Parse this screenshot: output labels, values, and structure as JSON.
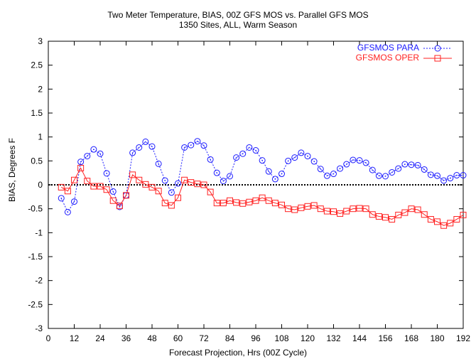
{
  "colors": {
    "para": "#1a1aff",
    "oper": "#ff2020",
    "zero": "#000000"
  },
  "chart_data": {
    "type": "line",
    "title": "Two Meter Temperature, BIAS, 00Z GFS MOS vs. Parallel GFS MOS",
    "subtitle": "1350 Sites, ALL, Warm Season",
    "xlabel": "Forecast Projection, Hrs (00Z Cycle)",
    "ylabel": "BIAS, Degrees F",
    "xlim": [
      0,
      192
    ],
    "ylim": [
      -3,
      3
    ],
    "xticks": [
      0,
      12,
      24,
      36,
      48,
      60,
      72,
      84,
      96,
      108,
      120,
      132,
      144,
      156,
      168,
      180,
      192
    ],
    "yticks": [
      -3,
      -2.5,
      -2,
      -1.5,
      -1,
      -0.5,
      0,
      0.5,
      1,
      1.5,
      2,
      2.5,
      3
    ],
    "grid": false,
    "legend_position": "top-right",
    "x": [
      6,
      9,
      12,
      15,
      18,
      21,
      24,
      27,
      30,
      33,
      36,
      39,
      42,
      45,
      48,
      51,
      54,
      57,
      60,
      63,
      66,
      69,
      72,
      75,
      78,
      81,
      84,
      87,
      90,
      93,
      96,
      99,
      102,
      105,
      108,
      111,
      114,
      117,
      120,
      123,
      126,
      129,
      132,
      135,
      138,
      141,
      144,
      147,
      150,
      153,
      156,
      159,
      162,
      165,
      168,
      171,
      174,
      177,
      180,
      183,
      186,
      189,
      192
    ],
    "series": [
      {
        "name": "GFSMOS PARA",
        "values": [
          -0.28,
          -0.57,
          -0.35,
          0.48,
          0.6,
          0.74,
          0.65,
          0.24,
          -0.14,
          -0.46,
          -0.22,
          0.67,
          0.78,
          0.9,
          0.8,
          0.44,
          0.09,
          -0.16,
          0.03,
          0.78,
          0.83,
          0.91,
          0.82,
          0.53,
          0.25,
          0.08,
          0.18,
          0.57,
          0.65,
          0.78,
          0.72,
          0.51,
          0.28,
          0.12,
          0.23,
          0.5,
          0.57,
          0.67,
          0.6,
          0.49,
          0.33,
          0.19,
          0.23,
          0.34,
          0.43,
          0.52,
          0.51,
          0.46,
          0.31,
          0.19,
          0.18,
          0.26,
          0.34,
          0.43,
          0.42,
          0.41,
          0.32,
          0.21,
          0.19,
          0.09,
          0.14,
          0.2,
          0.2
        ]
      },
      {
        "name": "GFSMOS OPER",
        "values": [
          -0.05,
          -0.13,
          0.1,
          0.35,
          0.08,
          -0.03,
          -0.03,
          -0.1,
          -0.33,
          -0.44,
          -0.22,
          0.21,
          0.1,
          0.01,
          -0.05,
          -0.13,
          -0.38,
          -0.43,
          -0.27,
          0.1,
          0.05,
          0.02,
          0.0,
          -0.15,
          -0.38,
          -0.38,
          -0.33,
          -0.37,
          -0.39,
          -0.36,
          -0.33,
          -0.27,
          -0.33,
          -0.38,
          -0.42,
          -0.5,
          -0.52,
          -0.48,
          -0.45,
          -0.43,
          -0.5,
          -0.55,
          -0.56,
          -0.6,
          -0.55,
          -0.5,
          -0.49,
          -0.5,
          -0.62,
          -0.66,
          -0.68,
          -0.72,
          -0.63,
          -0.58,
          -0.5,
          -0.52,
          -0.62,
          -0.72,
          -0.77,
          -0.85,
          -0.8,
          -0.72,
          -0.63
        ]
      }
    ]
  }
}
